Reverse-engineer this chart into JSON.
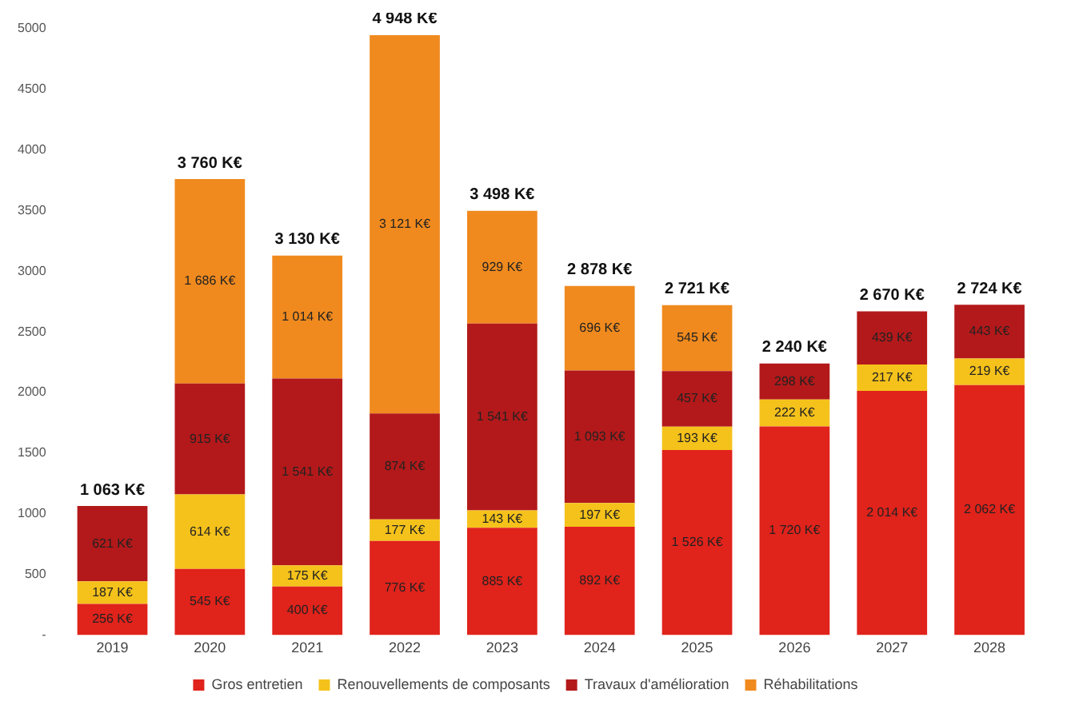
{
  "chart_data": {
    "type": "bar",
    "stacked": true,
    "categories": [
      "2019",
      "2020",
      "2021",
      "2022",
      "2023",
      "2024",
      "2025",
      "2026",
      "2027",
      "2028"
    ],
    "series": [
      {
        "name": "Gros entretien",
        "color": "#e0231b",
        "values": [
          256,
          545,
          400,
          776,
          885,
          892,
          1526,
          1720,
          2014,
          2062
        ],
        "value_labels": [
          "256 K€",
          "545 K€",
          "400 K€",
          "776 K€",
          "885 K€",
          "892 K€",
          "1 526 K€",
          "1 720 K€",
          "2 014 K€",
          "2 062 K€"
        ]
      },
      {
        "name": "Renouvellements de composants",
        "color": "#f5c21b",
        "values": [
          187,
          614,
          175,
          177,
          143,
          197,
          193,
          222,
          217,
          219
        ],
        "value_labels": [
          "187 K€",
          "614 K€",
          "175 K€",
          "177 K€",
          "143 K€",
          "197 K€",
          "193 K€",
          "222 K€",
          "217 K€",
          "219 K€"
        ]
      },
      {
        "name": "Travaux d'amélioration",
        "color": "#b3191a",
        "values": [
          621,
          915,
          1541,
          874,
          1541,
          1093,
          457,
          298,
          439,
          443
        ],
        "value_labels": [
          "621 K€",
          "915 K€",
          "1 541 K€",
          "874 K€",
          "1 541 K€",
          "1 093 K€",
          "457 K€",
          "298 K€",
          "439 K€",
          "443 K€"
        ]
      },
      {
        "name": "Réhabilitations",
        "color": "#f08a1e",
        "values": [
          null,
          1686,
          1014,
          3121,
          929,
          696,
          545,
          null,
          null,
          null
        ],
        "value_labels": [
          null,
          "1 686 K€",
          "1 014 K€",
          "3 121 K€",
          "929 K€",
          "696 K€",
          "545 K€",
          null,
          null,
          null
        ]
      }
    ],
    "totals": [
      "1 063 K€",
      "3 760 K€",
      "3 130 K€",
      "4 948 K€",
      "3 498 K€",
      "2 878 K€",
      "2 721 K€",
      "2 240 K€",
      "2 670 K€",
      "2 724 K€"
    ],
    "ylim": [
      0,
      5000
    ],
    "yticks": [
      {
        "value": 0,
        "label": "-"
      },
      500,
      1000,
      1500,
      2000,
      2500,
      3000,
      3500,
      4000,
      4500,
      5000
    ],
    "grid": false,
    "legend": "bottom"
  }
}
